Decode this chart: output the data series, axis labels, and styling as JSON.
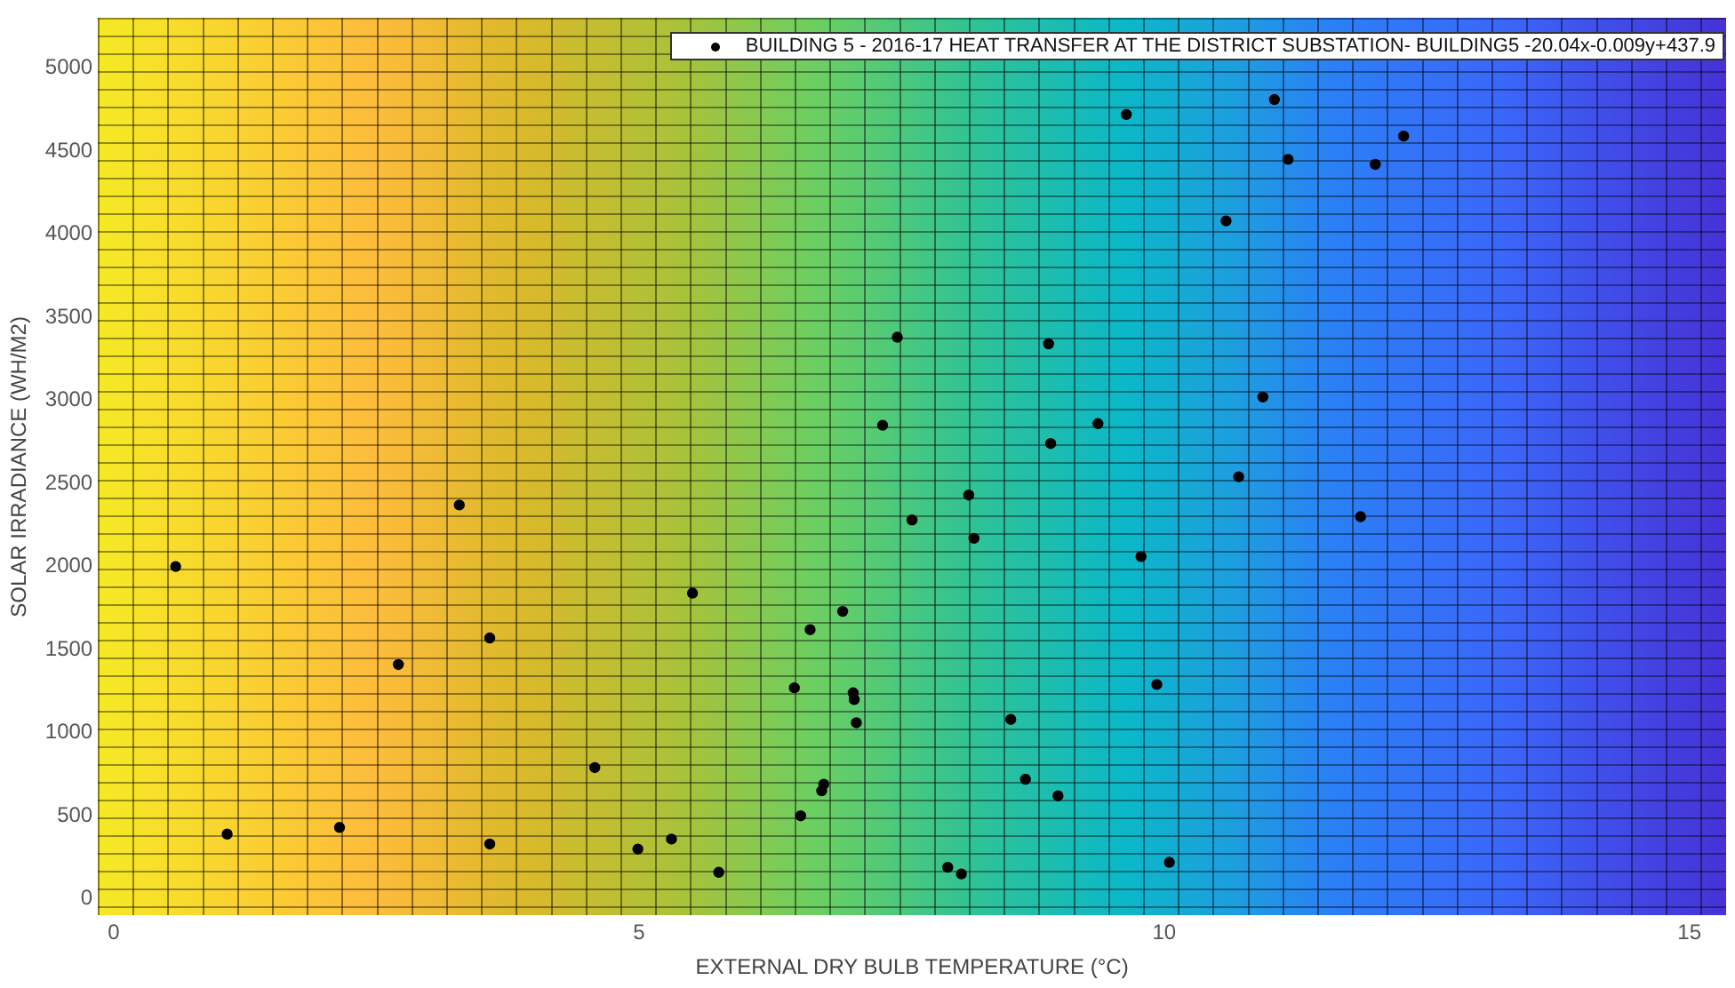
{
  "chart_data": {
    "type": "scatter",
    "xlabel": "EXTERNAL DRY BULB TEMPERATURE (°C)",
    "ylabel": "SOLAR IRRADIANCE (WH/M2)",
    "xlim": [
      -0.15,
      15.35
    ],
    "ylim": [
      -100,
      5300
    ],
    "xticks": [
      0,
      5,
      10,
      15
    ],
    "yticks": [
      0,
      500,
      1000,
      1500,
      2000,
      2500,
      3000,
      3500,
      4000,
      4500,
      5000
    ],
    "grid": false,
    "legend": "top right",
    "marker": "circle",
    "series": [
      {
        "name": "BUILDING 5 - 2016-17 HEAT TRANSFER AT THE DISTRICT SUBSTATION- BUILDING5 -20.04x-0.009y+437.9",
        "color": "#000000",
        "x": [
          0.59,
          1.08,
          2.15,
          2.71,
          3.29,
          3.58,
          3.58,
          4.58,
          4.99,
          5.31,
          5.51,
          5.76,
          6.48,
          6.54,
          6.63,
          6.74,
          6.76,
          6.94,
          7.04,
          7.05,
          7.07,
          7.32,
          7.46,
          7.6,
          7.94,
          8.07,
          8.14,
          8.19,
          8.54,
          8.68,
          8.9,
          8.92,
          8.99,
          9.37,
          9.64,
          9.78,
          9.93,
          10.05,
          10.59,
          10.71,
          10.94,
          11.05,
          11.18,
          11.87,
          12.01,
          12.28
        ],
        "values": [
          2000,
          390,
          430,
          1410,
          2370,
          1570,
          330,
          790,
          300,
          360,
          1840,
          160,
          1270,
          500,
          1620,
          650,
          690,
          1730,
          1240,
          1200,
          1060,
          2850,
          3380,
          2280,
          190,
          150,
          2430,
          2170,
          1080,
          720,
          3340,
          2740,
          620,
          2860,
          4720,
          2060,
          1290,
          220,
          4080,
          2540,
          3020,
          4810,
          4450,
          2300,
          4420,
          4590
        ]
      }
    ]
  }
}
